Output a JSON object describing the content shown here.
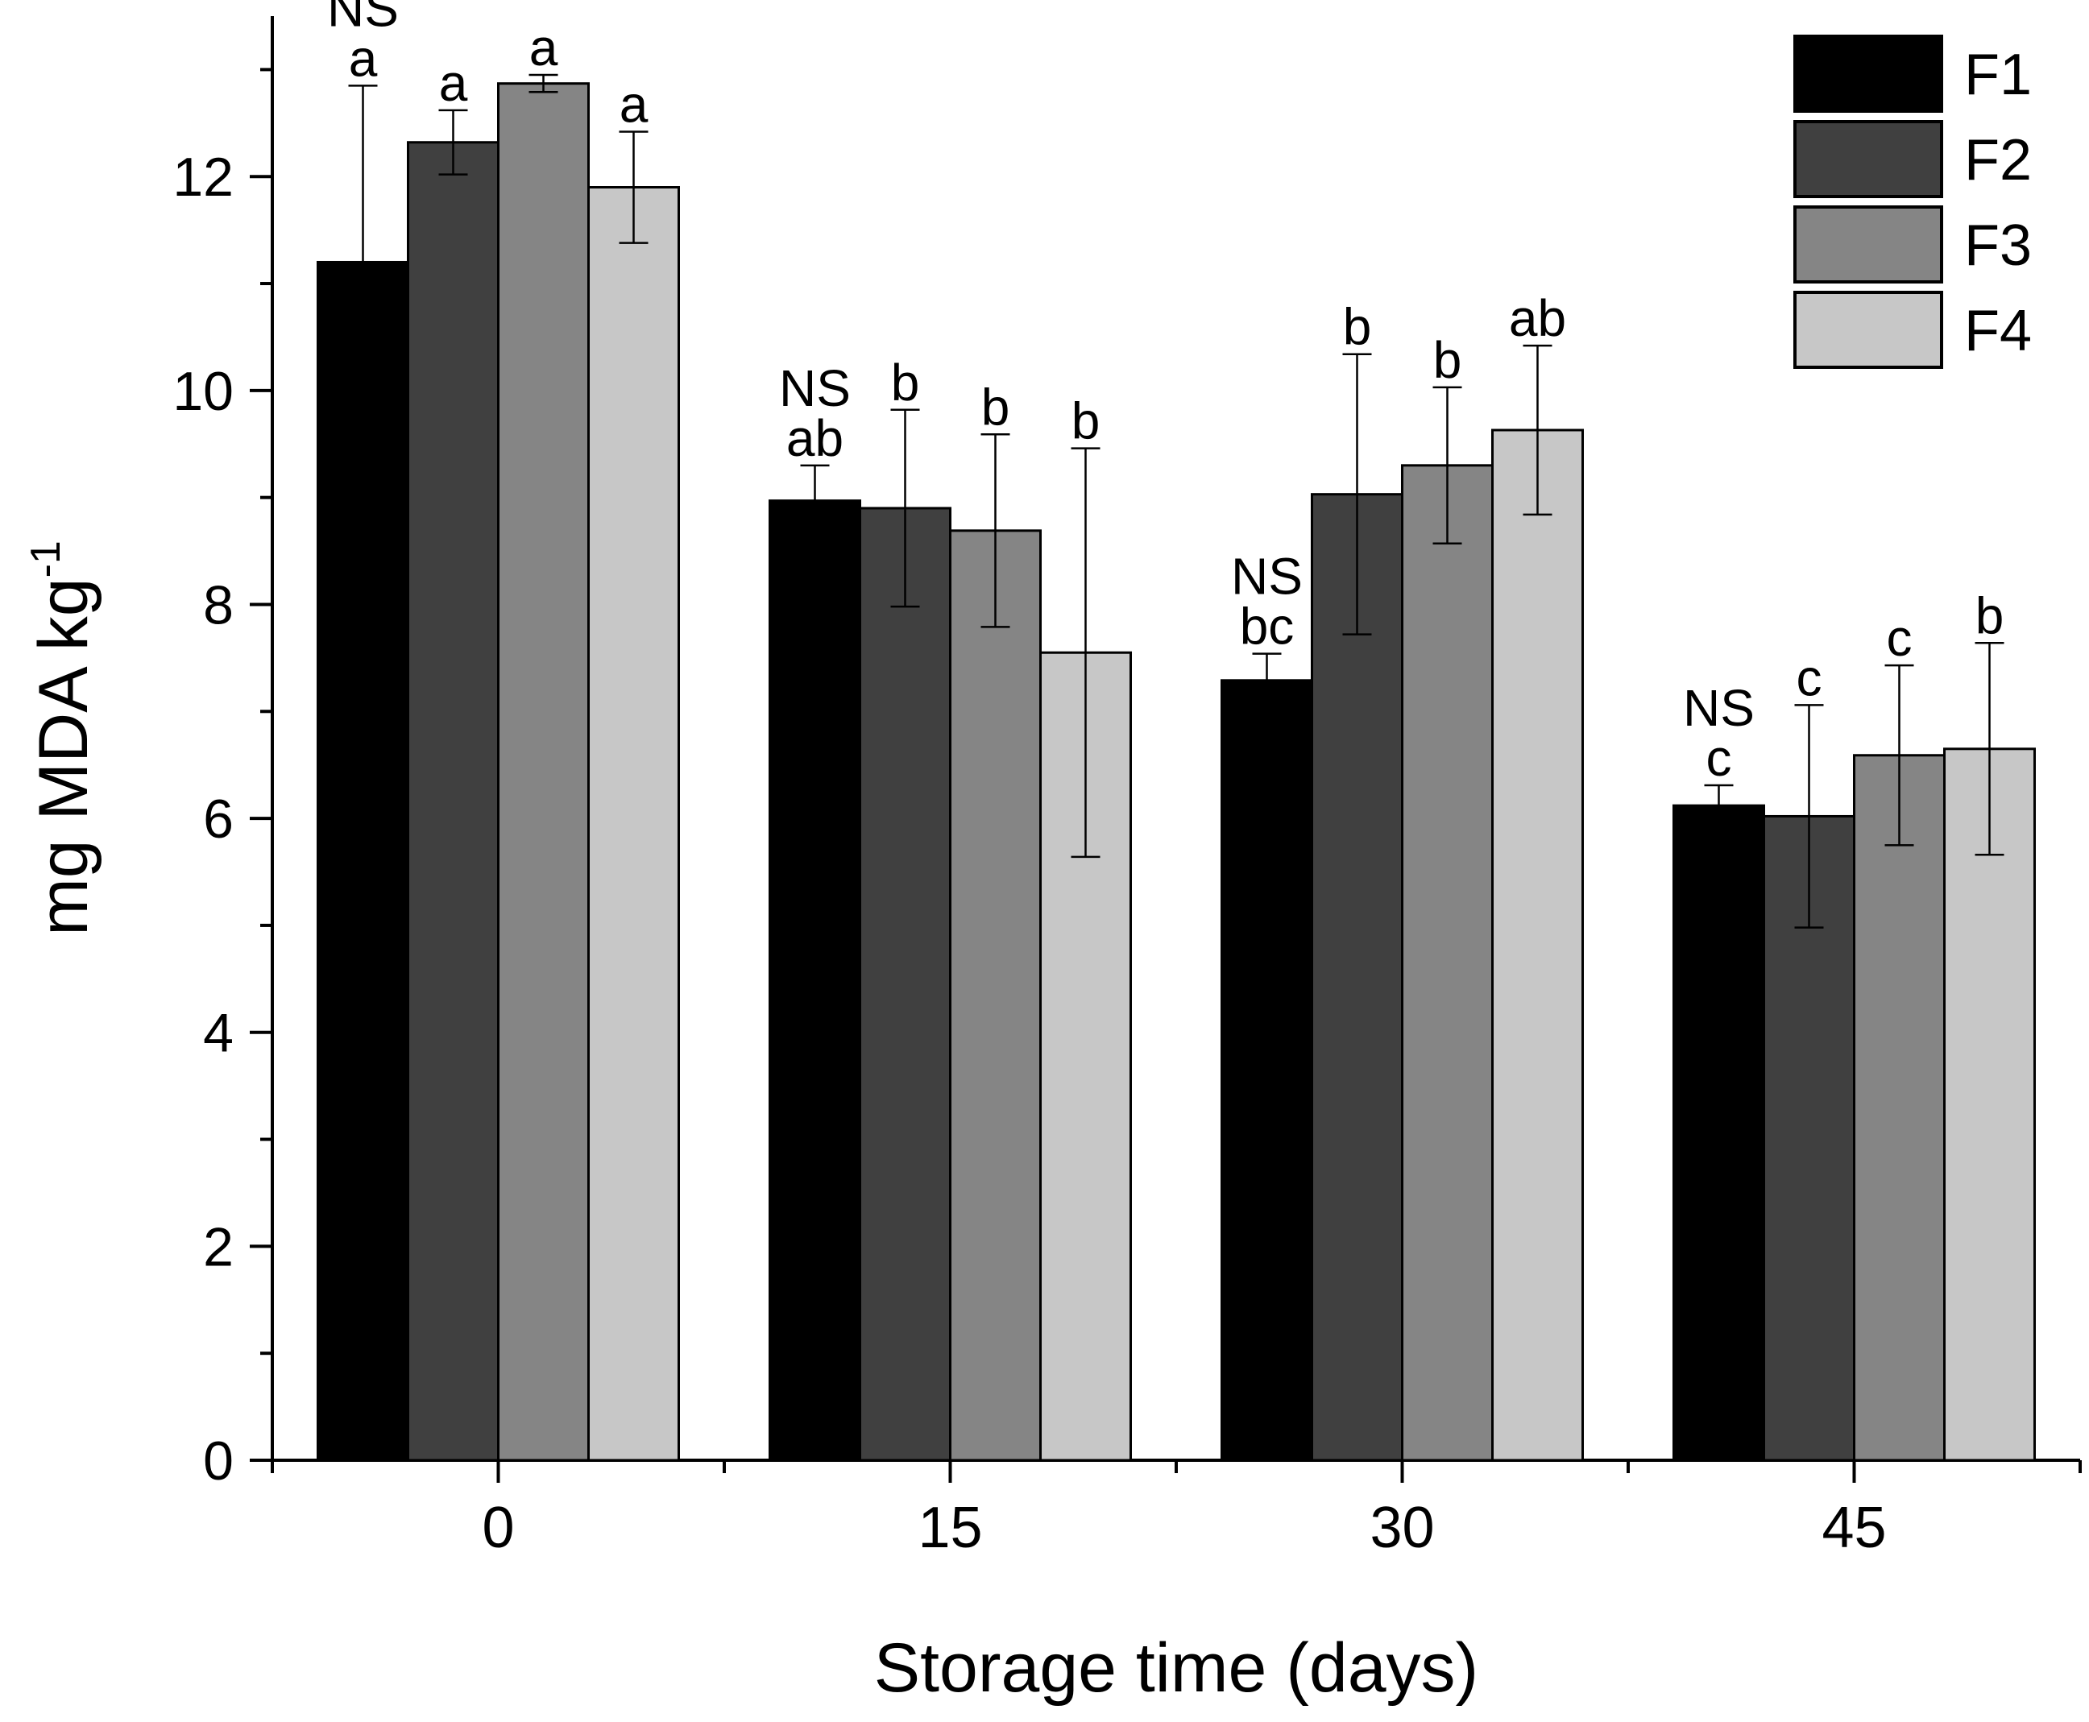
{
  "chart_data": {
    "type": "bar",
    "title": "",
    "xlabel": "Storage time (days)",
    "ylabel_main": "mg MDA kg",
    "ylabel_sup": "-1",
    "ylim": [
      0,
      13.5
    ],
    "yticks": [
      "0",
      "2",
      "4",
      "6",
      "8",
      "10",
      "12"
    ],
    "categories": [
      "0",
      "15",
      "30",
      "45"
    ],
    "series": [
      {
        "name": "F1",
        "color": "#000000",
        "values": [
          11.2,
          8.97,
          7.29,
          6.12
        ],
        "errors": [
          1.65,
          0.33,
          0.25,
          0.19
        ]
      },
      {
        "name": "F2",
        "color": "#404040",
        "values": [
          12.32,
          8.9,
          9.03,
          6.02
        ],
        "errors": [
          0.3,
          0.92,
          1.31,
          1.04
        ]
      },
      {
        "name": "F3",
        "color": "#858585",
        "values": [
          12.87,
          8.69,
          9.3,
          6.59
        ],
        "errors": [
          0.08,
          0.9,
          0.73,
          0.84
        ]
      },
      {
        "name": "F4",
        "color": "#c7c7c7",
        "values": [
          11.9,
          7.55,
          9.63,
          6.65
        ],
        "errors": [
          0.52,
          1.91,
          0.79,
          0.99
        ]
      }
    ],
    "letters": [
      [
        "a",
        "a",
        "a",
        "a"
      ],
      [
        "ab",
        "b",
        "b",
        "b"
      ],
      [
        "bc",
        "b",
        "b",
        "ab"
      ],
      [
        "c",
        "c",
        "c",
        "b"
      ]
    ],
    "group_annotation": "NS",
    "legend_position": "top-right"
  }
}
